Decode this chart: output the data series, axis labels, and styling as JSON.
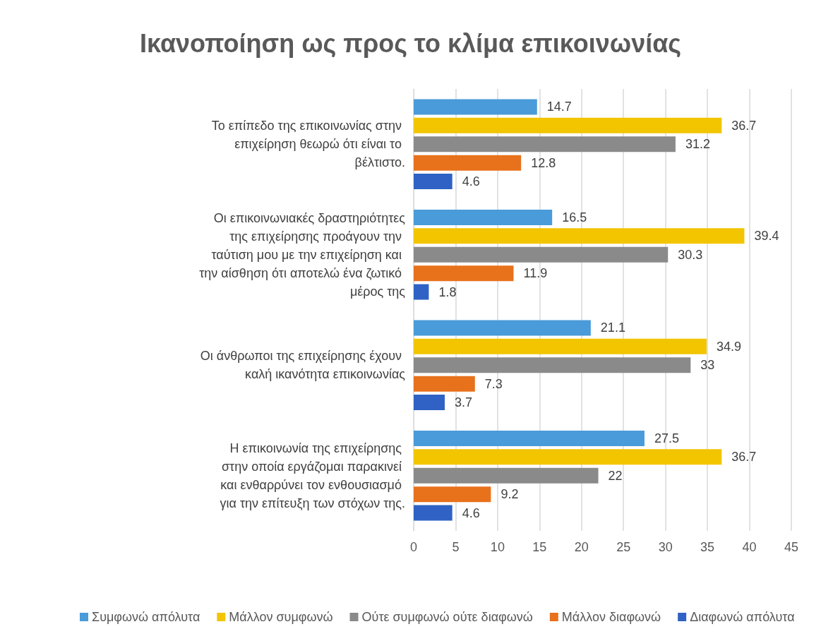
{
  "chart_data": {
    "type": "bar",
    "orientation": "horizontal",
    "title": "Ικανοποίηση ως προς το κλίμα επικοινωνίας",
    "categories": [
      "Το επίπεδο της επικοινωνίας στην επιχείρηση θεωρώ ότι είναι το βέλτιστο.",
      "Οι επικοινωνιακές δραστηριότητες της επιχείρησης προάγουν την ταύτιση μου με την επιχείρηση και την αίσθηση ότι αποτελώ ένα ζωτικό μέρος της",
      "Οι άνθρωποι της επιχείρησης έχουν καλή ικανότητα επικοινωνίας",
      "Η επικοινωνία της επιχείρησης στην οποία εργάζομαι παρακινεί και ενθαρρύνει τον ενθουσιασμό για την επίτευξη των στόχων της."
    ],
    "series": [
      {
        "name": "Συμφωνώ απόλυτα",
        "color": "#4a9bd9",
        "values": [
          14.7,
          16.5,
          21.1,
          27.5
        ]
      },
      {
        "name": "Μάλλον συμφωνώ",
        "color": "#f2c500",
        "values": [
          36.7,
          39.4,
          34.9,
          36.7
        ]
      },
      {
        "name": "Ούτε συμφωνώ ούτε διαφωνώ",
        "color": "#8a8a8a",
        "values": [
          31.2,
          30.3,
          33,
          22
        ]
      },
      {
        "name": "Μάλλον διαφωνώ",
        "color": "#e8711c",
        "values": [
          12.8,
          11.9,
          7.3,
          9.2
        ]
      },
      {
        "name": "Διαφωνώ απόλυτα",
        "color": "#2f62c4",
        "values": [
          4.6,
          1.8,
          3.7,
          4.6
        ]
      }
    ],
    "xlim": [
      0,
      45
    ],
    "xticks": [
      0,
      5,
      10,
      15,
      20,
      25,
      30,
      35,
      40,
      45
    ],
    "grid": "x",
    "legend": "bottom",
    "data_labels": true
  }
}
